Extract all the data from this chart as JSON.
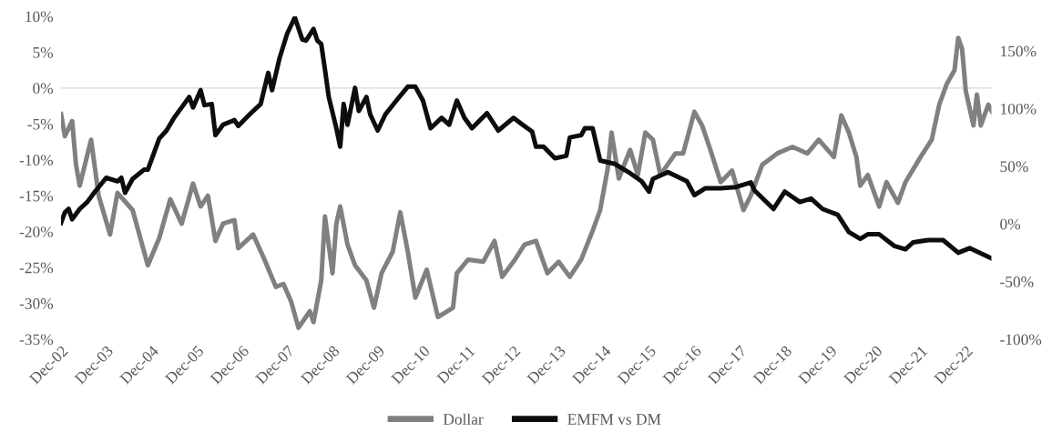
{
  "chart_data": {
    "type": "line",
    "xlim": [
      "2002-12",
      "2023-07"
    ],
    "xticks": [
      {
        "value": "2002-12",
        "label": "Dec-02"
      },
      {
        "value": "2003-12",
        "label": "Dec-03"
      },
      {
        "value": "2004-12",
        "label": "Dec-04"
      },
      {
        "value": "2005-12",
        "label": "Dec-05"
      },
      {
        "value": "2006-12",
        "label": "Dec-06"
      },
      {
        "value": "2007-12",
        "label": "Dec-07"
      },
      {
        "value": "2008-12",
        "label": "Dec-08"
      },
      {
        "value": "2009-12",
        "label": "Dec-09"
      },
      {
        "value": "2010-12",
        "label": "Dec-10"
      },
      {
        "value": "2011-12",
        "label": "Dec-11"
      },
      {
        "value": "2012-12",
        "label": "Dec-12"
      },
      {
        "value": "2013-12",
        "label": "Dec-13"
      },
      {
        "value": "2014-12",
        "label": "Dec-14"
      },
      {
        "value": "2015-12",
        "label": "Dec-15"
      },
      {
        "value": "2016-12",
        "label": "Dec-16"
      },
      {
        "value": "2017-12",
        "label": "Dec-17"
      },
      {
        "value": "2018-12",
        "label": "Dec-18"
      },
      {
        "value": "2019-12",
        "label": "Dec-19"
      },
      {
        "value": "2020-12",
        "label": "Dec-20"
      },
      {
        "value": "2021-12",
        "label": "Dec-21"
      },
      {
        "value": "2022-12",
        "label": "Dec-22"
      }
    ],
    "ylim": [
      -35,
      10
    ],
    "yticks": [
      {
        "value": -35,
        "label": "-35%"
      },
      {
        "value": -30,
        "label": "-30%"
      },
      {
        "value": -25,
        "label": "-25%"
      },
      {
        "value": -20,
        "label": "-20%"
      },
      {
        "value": -15,
        "label": "-15%"
      },
      {
        "value": -10,
        "label": "-10%"
      },
      {
        "value": -5,
        "label": "-5%"
      },
      {
        "value": 0,
        "label": "0%"
      },
      {
        "value": 5,
        "label": "5%"
      },
      {
        "value": 10,
        "label": "10%"
      }
    ],
    "y2lim": [
      -100,
      180
    ],
    "y2ticks": [
      {
        "value": -100,
        "label": "-100%"
      },
      {
        "value": -50,
        "label": "-50%"
      },
      {
        "value": 0,
        "label": "0%"
      },
      {
        "value": 50,
        "label": "50%"
      },
      {
        "value": 100,
        "label": "100%"
      },
      {
        "value": 150,
        "label": "150%"
      }
    ],
    "ref_lines": [
      {
        "axis": "y",
        "value": 0,
        "color": "#d9d9d9"
      }
    ],
    "grid": false,
    "legend": "bottom",
    "marker": "none",
    "line_style": "solid",
    "series": [
      {
        "name": "Dollar",
        "color": "#808080",
        "x": [
          "2002-12",
          "2003-01",
          "2003-03",
          "2003-04",
          "2003-05",
          "2003-08",
          "2003-10",
          "2004-01",
          "2004-03",
          "2004-07",
          "2004-11",
          "2005-02",
          "2005-05",
          "2005-08",
          "2005-11",
          "2006-01",
          "2006-03",
          "2006-05",
          "2006-07",
          "2006-10",
          "2006-11",
          "2007-03",
          "2007-06",
          "2007-09",
          "2007-11",
          "2008-01",
          "2008-03",
          "2008-06",
          "2008-07",
          "2008-09",
          "2008-10",
          "2008-12",
          "2009-01",
          "2009-02",
          "2009-04",
          "2009-06",
          "2009-09",
          "2009-11",
          "2010-01",
          "2010-04",
          "2010-06",
          "2010-08",
          "2010-10",
          "2011-01",
          "2011-04",
          "2011-08",
          "2011-09",
          "2011-12",
          "2012-04",
          "2012-07",
          "2012-09",
          "2012-12",
          "2013-03",
          "2013-06",
          "2013-09",
          "2013-12",
          "2014-03",
          "2014-06",
          "2014-09",
          "2014-11",
          "2015-01",
          "2015-02",
          "2015-04",
          "2015-07",
          "2015-09",
          "2015-11",
          "2016-01",
          "2016-03",
          "2016-07",
          "2016-09",
          "2016-12",
          "2017-02",
          "2017-04",
          "2017-07",
          "2017-10",
          "2018-01",
          "2018-03",
          "2018-06",
          "2018-10",
          "2019-02",
          "2019-06",
          "2019-09",
          "2020-01",
          "2020-03",
          "2020-05",
          "2020-07",
          "2020-08",
          "2020-10",
          "2021-01",
          "2021-03",
          "2021-06",
          "2021-08",
          "2021-12",
          "2022-03",
          "2022-05",
          "2022-07",
          "2022-09",
          "2022-10",
          "2022-11",
          "2022-12",
          "2023-02",
          "2023-03",
          "2023-04",
          "2023-06",
          "2023-07"
        ],
        "values": [
          -3.6,
          -6.7,
          -4.6,
          -10.7,
          -13.6,
          -7.2,
          -15.0,
          -20.4,
          -14.6,
          -17.0,
          -24.7,
          -20.9,
          -15.5,
          -18.9,
          -13.3,
          -16.5,
          -15.0,
          -21.3,
          -18.9,
          -18.4,
          -22.3,
          -20.4,
          -23.9,
          -27.7,
          -27.3,
          -29.7,
          -33.4,
          -31.1,
          -32.6,
          -26.8,
          -17.9,
          -25.8,
          -18.9,
          -16.5,
          -21.8,
          -24.7,
          -26.8,
          -30.6,
          -25.8,
          -22.8,
          -17.3,
          -22.8,
          -29.2,
          -25.3,
          -31.9,
          -30.6,
          -25.8,
          -23.9,
          -24.2,
          -21.3,
          -26.3,
          -24.2,
          -21.8,
          -21.3,
          -25.8,
          -24.2,
          -26.3,
          -23.9,
          -19.9,
          -17.0,
          -11.2,
          -6.2,
          -12.6,
          -8.6,
          -12.1,
          -6.2,
          -7.2,
          -12.1,
          -9.1,
          -9.1,
          -3.3,
          -5.2,
          -8.2,
          -13.1,
          -11.5,
          -17.0,
          -15.0,
          -10.7,
          -9.1,
          -8.2,
          -9.1,
          -7.2,
          -9.6,
          -3.8,
          -6.2,
          -9.6,
          -13.6,
          -12.1,
          -16.5,
          -13.1,
          -16.0,
          -13.1,
          -9.6,
          -7.2,
          -2.3,
          0.6,
          2.5,
          7.0,
          5.5,
          -0.4,
          -5.2,
          -0.9,
          -5.2,
          -2.3,
          -3.3
        ]
      },
      {
        "name": "EMFM vs DM",
        "color": "#0d0d0d",
        "axis": "y2",
        "x": [
          "2002-12",
          "2003-01",
          "2003-02",
          "2003-03",
          "2003-05",
          "2003-07",
          "2003-09",
          "2003-12",
          "2004-03",
          "2004-04",
          "2004-05",
          "2004-07",
          "2004-10",
          "2004-11",
          "2005-01",
          "2005-02",
          "2005-04",
          "2005-06",
          "2005-08",
          "2005-10",
          "2005-11",
          "2006-01",
          "2006-02",
          "2006-04",
          "2006-05",
          "2006-07",
          "2006-10",
          "2006-11",
          "2007-02",
          "2007-05",
          "2007-07",
          "2007-08",
          "2007-10",
          "2007-12",
          "2008-02",
          "2008-04",
          "2008-05",
          "2008-07",
          "2008-08",
          "2008-09",
          "2008-10",
          "2008-11",
          "2009-01",
          "2009-02",
          "2009-03",
          "2009-04",
          "2009-06",
          "2009-07",
          "2009-09",
          "2009-10",
          "2009-12",
          "2010-02",
          "2010-05",
          "2010-08",
          "2010-10",
          "2010-12",
          "2011-02",
          "2011-05",
          "2011-07",
          "2011-09",
          "2011-11",
          "2012-01",
          "2012-05",
          "2012-08",
          "2012-12",
          "2013-02",
          "2013-05",
          "2013-06",
          "2013-08",
          "2013-11",
          "2014-02",
          "2014-03",
          "2014-06",
          "2014-07",
          "2014-09",
          "2014-11",
          "2015-03",
          "2015-07",
          "2015-10",
          "2015-12",
          "2016-01",
          "2016-05",
          "2016-10",
          "2016-12",
          "2017-03",
          "2017-07",
          "2017-11",
          "2018-03",
          "2018-04",
          "2018-09",
          "2018-12",
          "2019-04",
          "2019-07",
          "2019-10",
          "2020-02",
          "2020-05",
          "2020-08",
          "2020-10",
          "2021-01",
          "2021-05",
          "2021-08",
          "2021-10",
          "2022-02",
          "2022-06",
          "2022-10",
          "2023-01",
          "2023-07"
        ],
        "values": [
          1,
          10,
          13,
          4,
          13,
          19,
          28,
          40,
          37,
          40,
          27,
          39,
          47,
          47,
          65,
          74,
          81,
          92,
          101,
          110,
          101,
          116,
          103,
          104,
          77,
          86,
          90,
          85,
          95,
          104,
          131,
          116,
          144,
          165,
          179,
          160,
          159,
          169,
          159,
          156,
          134,
          110,
          83,
          67,
          104,
          86,
          118,
          98,
          110,
          95,
          81,
          95,
          107,
          119,
          119,
          107,
          83,
          92,
          86,
          107,
          92,
          83,
          96,
          81,
          92,
          87,
          80,
          67,
          67,
          57,
          59,
          75,
          77,
          83,
          83,
          55,
          52,
          44,
          37,
          28,
          39,
          45,
          37,
          25,
          31,
          31,
          32,
          36,
          29,
          13,
          28,
          19,
          22,
          13,
          8,
          -7,
          -13,
          -9,
          -9,
          -19,
          -22,
          -16,
          -14,
          -14,
          -25,
          -21,
          -30
        ]
      }
    ]
  }
}
